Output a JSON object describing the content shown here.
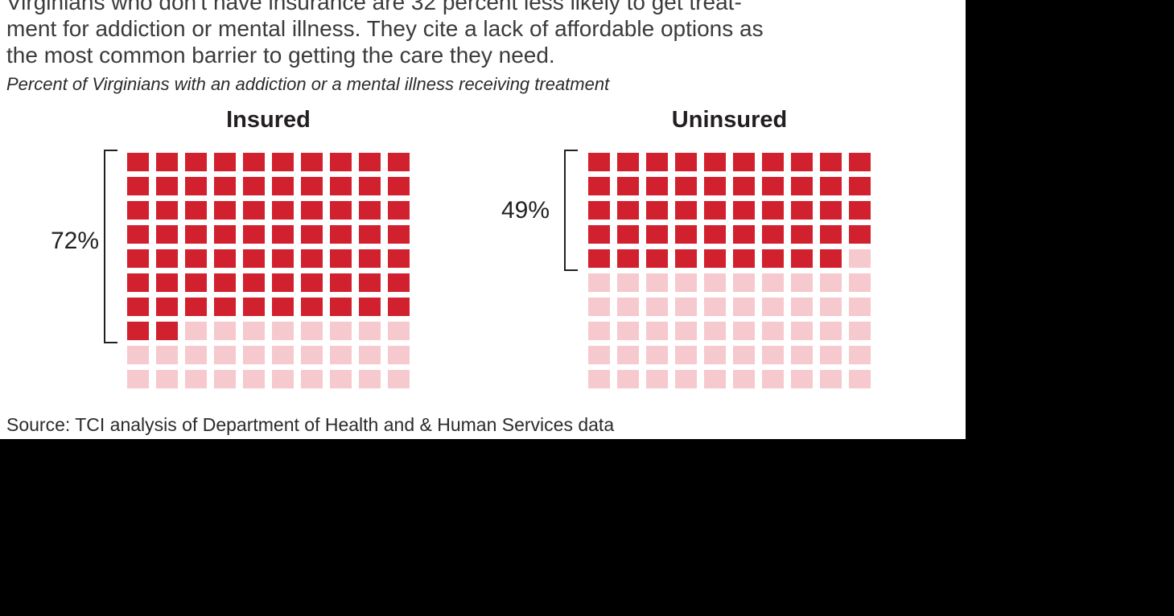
{
  "headline": {
    "lines": [
      "Virginians who don't have insurance are 32 percent less likely to get treat-",
      "ment for addiction or mental illness. They cite a lack of affordable options as",
      "the most common barrier to getting the care they need."
    ]
  },
  "subtitle": "Percent of Virginians with an addiction or a mental illness receiving treatment",
  "source": "Source: TCI analysis of Department of Health and & Human Services data",
  "colors": {
    "filled": "#d2212e",
    "empty": "#f6c9ce",
    "bracket": "#231f20",
    "panel": "#ffffff",
    "background": "#000000"
  },
  "chart_data": {
    "type": "waffle",
    "title": "Percent of Virginians with an addiction or a mental illness receiving treatment",
    "layout": "two side-by-side 10x10 waffle grids, filled top-to-bottom left-to-right, bracket on left spanning filled rows",
    "groups": [
      {
        "label": "Insured",
        "value": 72,
        "total": 100,
        "value_label": "72%",
        "columns": 10,
        "rows": 10
      },
      {
        "label": "Uninsured",
        "value": 49,
        "total": 100,
        "value_label": "49%",
        "columns": 10,
        "rows": 10
      }
    ]
  }
}
